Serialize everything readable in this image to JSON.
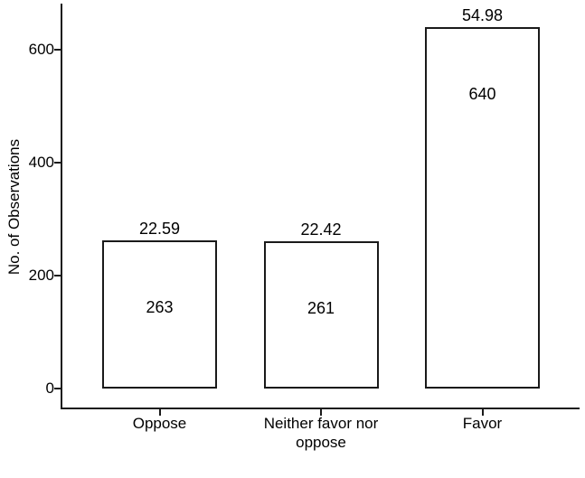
{
  "chart_data": {
    "type": "bar",
    "title": "",
    "xlabel": "",
    "ylabel": "No. of Observations",
    "categories": [
      "Oppose",
      "Neither favor nor\noppose",
      "Favor"
    ],
    "values": [
      263,
      261,
      640
    ],
    "percent_labels_above_bars": [
      "22.59",
      "22.42",
      "54.98"
    ],
    "count_labels_inside_bars": [
      "263",
      "261",
      "640"
    ],
    "yticks": [
      0,
      200,
      400,
      600
    ],
    "ylim": [
      0,
      680
    ],
    "grid": false,
    "legend": "none",
    "bar_fill": "#ffffff",
    "bar_stroke": "#1a1a1a",
    "axis_color": "#1a1a1a",
    "text_color": "#000000",
    "background": "#ffffff"
  }
}
